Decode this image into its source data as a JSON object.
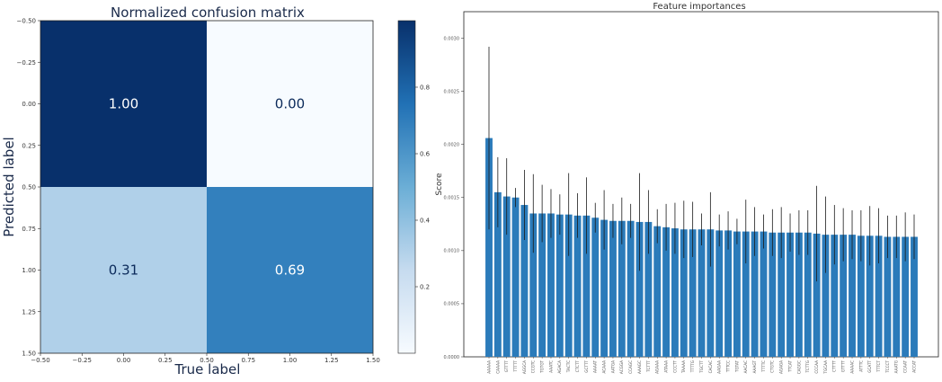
{
  "chart_data": [
    {
      "type": "heatmap",
      "title": "Normalized confusion matrix",
      "xlabel": "True label",
      "ylabel": "Predicted label",
      "xlim": [
        -0.5,
        1.5
      ],
      "ylim": [
        1.5,
        -0.5
      ],
      "x_ticks": [
        "−0.50",
        "−0.25",
        "0.00",
        "0.25",
        "0.50",
        "0.75",
        "1.00",
        "1.25",
        "1.50"
      ],
      "y_ticks": [
        "−0.50",
        "−0.25",
        "0.00",
        "0.25",
        "0.50",
        "0.75",
        "1.00",
        "1.25",
        "1.50"
      ],
      "matrix": [
        [
          1.0,
          0.0
        ],
        [
          0.31,
          0.69
        ]
      ],
      "cell_labels": [
        [
          "1.00",
          "0.00"
        ],
        [
          "0.31",
          "0.69"
        ]
      ],
      "colorbar_ticks": [
        "0.2",
        "0.4",
        "0.6",
        "0.8"
      ],
      "colormap": "Blues",
      "colors": {
        "dark": "#08306b",
        "light": "#f7fbff",
        "mid_light": "#b0d1e8",
        "mid_dark": "#3c86c3"
      }
    },
    {
      "type": "bar",
      "title": "Feature importances",
      "ylabel": "Score",
      "ylim": [
        0,
        0.00325
      ],
      "y_ticks": [
        "0.0000",
        "0.0005",
        "0.0010",
        "0.0015",
        "0.0020",
        "0.0025",
        "0.0030"
      ],
      "categories": [
        "AAAAA",
        "CAAAA",
        "GTTTT",
        "TTTTT",
        "AGGCA",
        "CCGTC",
        "TGTGT",
        "AAATC",
        "AGACA",
        "TACTC",
        "CTCTT",
        "GCTTT",
        "AAAAT",
        "ACAAA",
        "AATGA",
        "ACGGA",
        "CCAGC",
        "AAAGC",
        "TCTTT",
        "AGAAA",
        "ATAAA",
        "CCCTT",
        "TAAAA",
        "TTTTG",
        "TGCTT",
        "CACAC",
        "AAGAA",
        "TTTCC",
        "TGTAT",
        "AACAC",
        "AAAGT",
        "TTTTC",
        "CTGTC",
        "AGAGA",
        "TTCAT",
        "CAGGC",
        "TCTTG",
        "CCCAA",
        "TGCAA",
        "CTTTT",
        "GTTTT",
        "AAAAC",
        "ATTTC",
        "GCATT",
        "TTTCT",
        "TCCCT",
        "AAATG",
        "CCAAT",
        "ACCAT"
      ],
      "values": [
        0.00206,
        0.00155,
        0.00151,
        0.0015,
        0.00143,
        0.00135,
        0.00135,
        0.00135,
        0.00134,
        0.00134,
        0.00133,
        0.00133,
        0.00131,
        0.00129,
        0.00128,
        0.00128,
        0.00128,
        0.00127,
        0.00127,
        0.00123,
        0.00122,
        0.00121,
        0.0012,
        0.0012,
        0.0012,
        0.0012,
        0.00119,
        0.00119,
        0.00118,
        0.00118,
        0.00118,
        0.00118,
        0.00117,
        0.00117,
        0.00117,
        0.00117,
        0.00117,
        0.00116,
        0.00115,
        0.00115,
        0.00115,
        0.00115,
        0.00114,
        0.00114,
        0.00114,
        0.00113,
        0.00113,
        0.00113,
        0.00113
      ],
      "errors": [
        0.00086,
        0.00033,
        0.00036,
        9e-05,
        0.00033,
        0.00037,
        0.00027,
        0.00023,
        0.00019,
        0.00039,
        0.00021,
        0.00036,
        0.00014,
        0.00028,
        0.00016,
        0.00022,
        0.00016,
        0.00046,
        0.0003,
        0.00016,
        0.00022,
        0.00024,
        0.00027,
        0.00026,
        0.00015,
        0.00035,
        0.00015,
        0.00018,
        0.00012,
        0.0003,
        0.00023,
        0.00016,
        0.00022,
        0.00024,
        0.00018,
        0.00021,
        0.00021,
        0.00045,
        0.00036,
        0.00028,
        0.00025,
        0.00023,
        0.00024,
        0.00028,
        0.00026,
        0.0002,
        0.0002,
        0.00023,
        0.00021
      ],
      "bar_color": "#2b7bba"
    }
  ]
}
